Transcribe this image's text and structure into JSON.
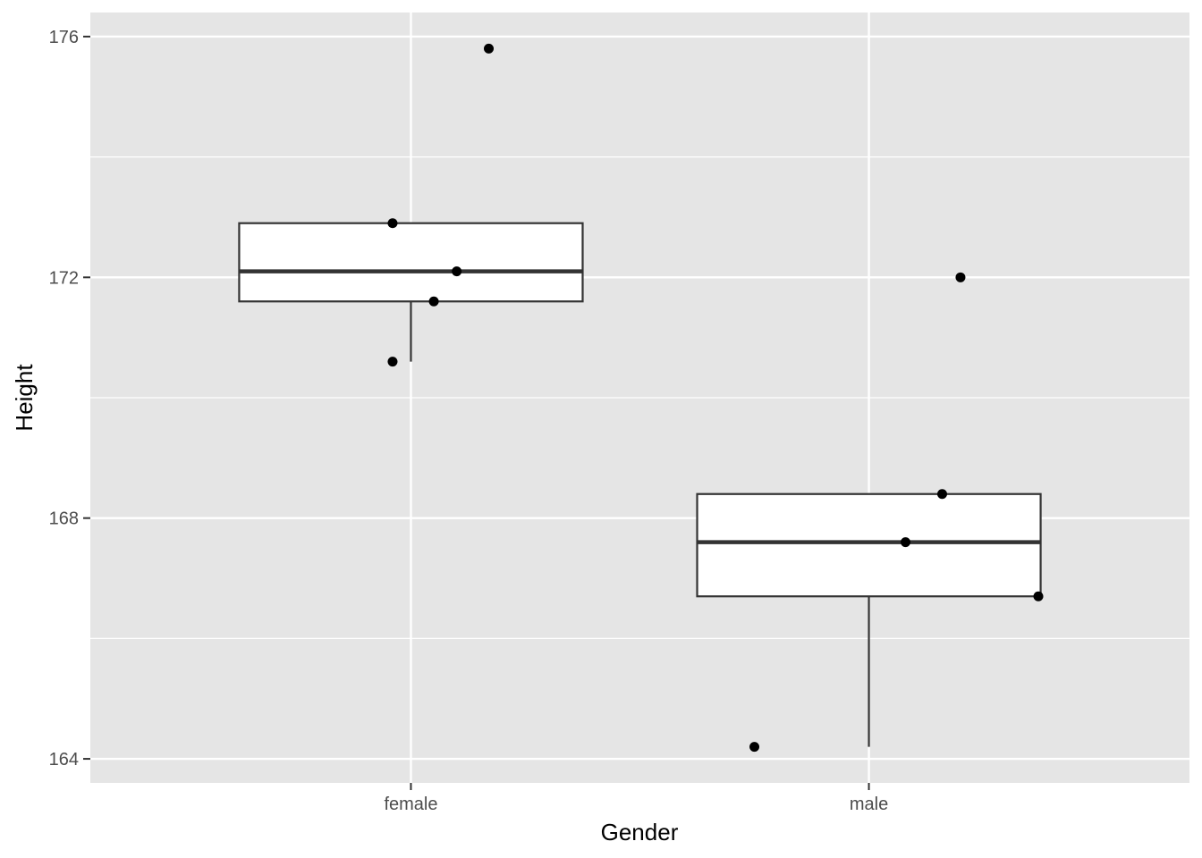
{
  "chart_data": {
    "type": "boxplot",
    "title": "",
    "xlabel": "Gender",
    "ylabel": "Height",
    "categories": [
      "female",
      "male"
    ],
    "ylim": [
      163.6,
      176.4
    ],
    "yticks": [
      164,
      168,
      172,
      176
    ],
    "ytick_labels": [
      "164",
      "168",
      "172",
      "176"
    ],
    "minor_yticks": [
      166,
      170,
      174
    ],
    "grid": true,
    "legend": "none",
    "colors": {
      "panel": "#e5e5e5",
      "grid": "#ffffff",
      "box_fill": "#ffffff",
      "box_line": "#333333",
      "point": "#000000"
    },
    "boxes": [
      {
        "category": "female",
        "lower_whisker": 170.6,
        "q1": 171.6,
        "median": 172.1,
        "q3": 172.9,
        "upper_whisker": 172.9
      },
      {
        "category": "male",
        "lower_whisker": 164.2,
        "q1": 166.7,
        "median": 167.6,
        "q3": 168.4,
        "upper_whisker": 168.4
      }
    ],
    "points": [
      {
        "category": "female",
        "jitter": -0.04,
        "y": 172.9
      },
      {
        "category": "female",
        "jitter": 0.1,
        "y": 172.1
      },
      {
        "category": "female",
        "jitter": 0.05,
        "y": 171.6
      },
      {
        "category": "female",
        "jitter": -0.04,
        "y": 170.6
      },
      {
        "category": "female",
        "jitter": 0.17,
        "y": 175.8
      },
      {
        "category": "male",
        "jitter": 0.2,
        "y": 172.0
      },
      {
        "category": "male",
        "jitter": 0.16,
        "y": 168.4
      },
      {
        "category": "male",
        "jitter": 0.08,
        "y": 167.6
      },
      {
        "category": "male",
        "jitter": 0.37,
        "y": 166.7
      },
      {
        "category": "male",
        "jitter": -0.25,
        "y": 164.2
      }
    ]
  }
}
